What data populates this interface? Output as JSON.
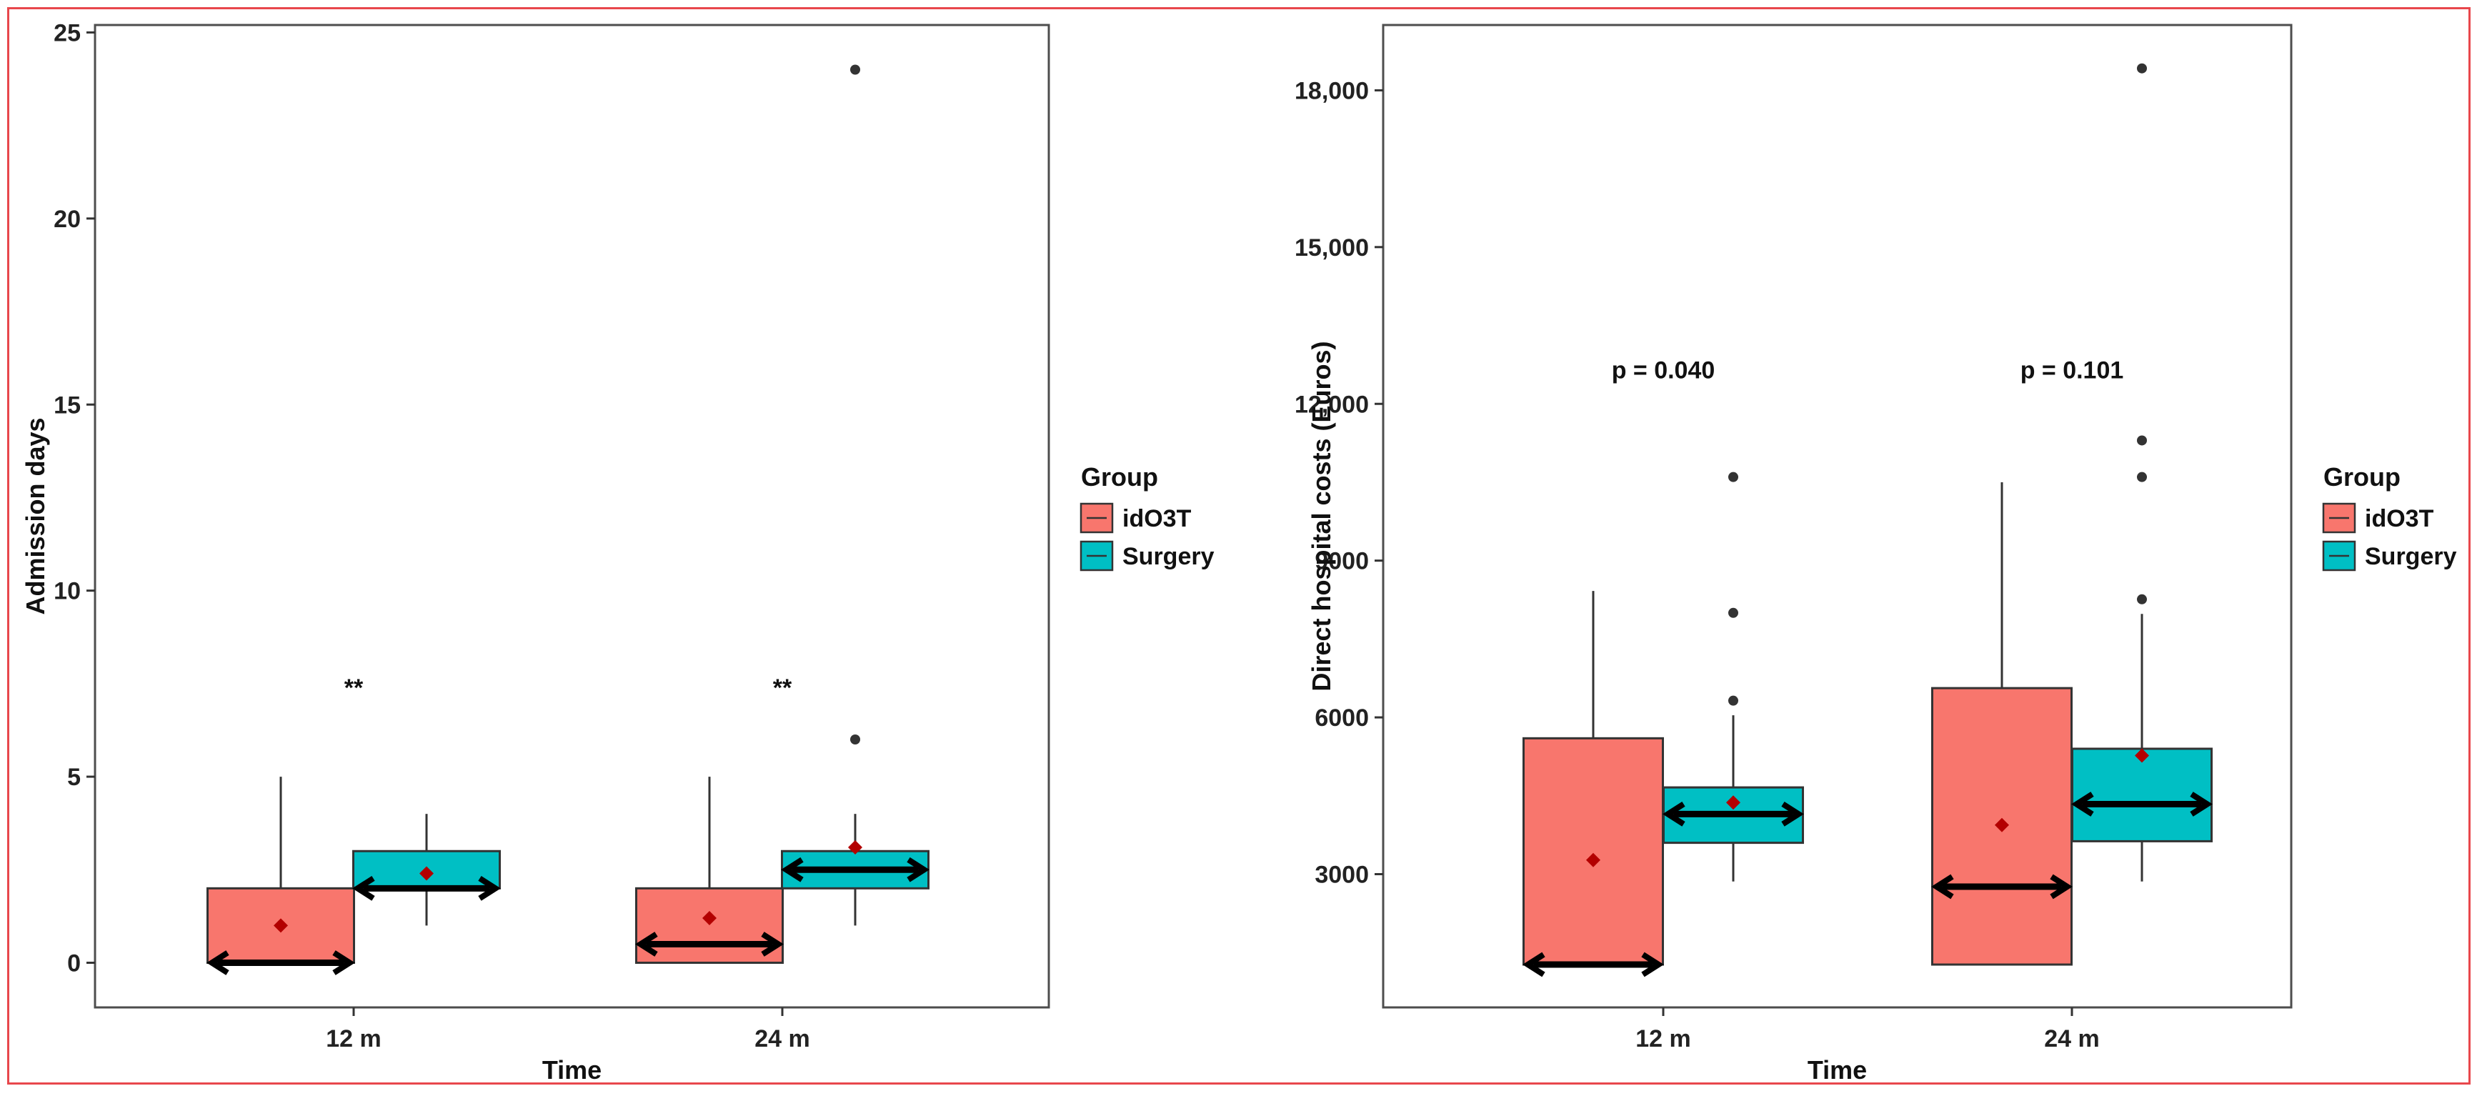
{
  "chart_data": [
    {
      "type": "box",
      "title": "",
      "xlabel": "Time",
      "ylabel": "Admission days",
      "categories": [
        "12 m",
        "24 m"
      ],
      "ylim": [
        -1.2,
        25.2
      ],
      "yticks": [
        0,
        5,
        10,
        15,
        20,
        25
      ],
      "ytick_labels": [
        "0",
        "5",
        "10",
        "15",
        "20",
        "25"
      ],
      "grid": false,
      "legend": {
        "title": "Group",
        "placement": "right",
        "entries": [
          {
            "name": "idO3T",
            "color": "#f8766d"
          },
          {
            "name": "Surgery",
            "color": "#00bfc4"
          }
        ]
      },
      "series": [
        {
          "name": "idO3T",
          "color": "#f8766d",
          "boxes": [
            {
              "category": "12 m",
              "q1": 0,
              "median": 0,
              "q3": 2,
              "whisker_low": 0,
              "whisker_high": 5,
              "mean": 1.0,
              "outliers": []
            },
            {
              "category": "24 m",
              "q1": 0,
              "median": 0.5,
              "q3": 2,
              "whisker_low": 0,
              "whisker_high": 5,
              "mean": 1.2,
              "outliers": []
            }
          ]
        },
        {
          "name": "Surgery",
          "color": "#00bfc4",
          "boxes": [
            {
              "category": "12 m",
              "q1": 2,
              "median": 2,
              "q3": 3,
              "whisker_low": 1,
              "whisker_high": 4,
              "mean": 2.4,
              "outliers": []
            },
            {
              "category": "24 m",
              "q1": 2,
              "median": 2.5,
              "q3": 3,
              "whisker_low": 1,
              "whisker_high": 4,
              "mean": 3.1,
              "outliers": [
                6,
                24
              ]
            }
          ]
        }
      ],
      "annotations": [
        {
          "category": "12 m",
          "text": "**",
          "y": 7.4
        },
        {
          "category": "24 m",
          "text": "**",
          "y": 7.4
        }
      ]
    },
    {
      "type": "box",
      "title": "",
      "xlabel": "Time",
      "ylabel": "Direct hospital costs (Euros)",
      "categories": [
        "12 m",
        "24 m"
      ],
      "ylim": [
        450,
        19250
      ],
      "yticks": [
        3000,
        6000,
        9000,
        12000,
        15000,
        18000
      ],
      "ytick_labels": [
        "3000",
        "6000",
        "9000",
        "12,000",
        "15,000",
        "18,000"
      ],
      "grid": false,
      "legend": {
        "title": "Group",
        "placement": "right",
        "entries": [
          {
            "name": "idO3T",
            "color": "#f8766d"
          },
          {
            "name": "Surgery",
            "color": "#00bfc4"
          }
        ]
      },
      "series": [
        {
          "name": "idO3T",
          "color": "#f8766d",
          "boxes": [
            {
              "category": "12 m",
              "q1": 1270,
              "median": 1270,
              "q3": 5600,
              "whisker_low": 1270,
              "whisker_high": 8420,
              "mean": 3270,
              "outliers": []
            },
            {
              "category": "24 m",
              "q1": 1270,
              "median": 2760,
              "q3": 6560,
              "whisker_low": 1270,
              "whisker_high": 10500,
              "mean": 3940,
              "outliers": []
            }
          ]
        },
        {
          "name": "Surgery",
          "color": "#00bfc4",
          "boxes": [
            {
              "category": "12 m",
              "q1": 3600,
              "median": 4150,
              "q3": 4660,
              "whisker_low": 2860,
              "whisker_high": 6040,
              "mean": 4370,
              "outliers": [
                6320,
                8000,
                10600
              ]
            },
            {
              "category": "24 m",
              "q1": 3630,
              "median": 4340,
              "q3": 5400,
              "whisker_low": 2860,
              "whisker_high": 7980,
              "mean": 5270,
              "outliers": [
                8260,
                10600,
                11300,
                18420
              ]
            }
          ]
        }
      ],
      "annotations": [
        {
          "category": "12 m",
          "text": "p = 0.040",
          "y": 12650
        },
        {
          "category": "24 m",
          "text": "p = 0.101",
          "y": 12650
        }
      ]
    }
  ]
}
